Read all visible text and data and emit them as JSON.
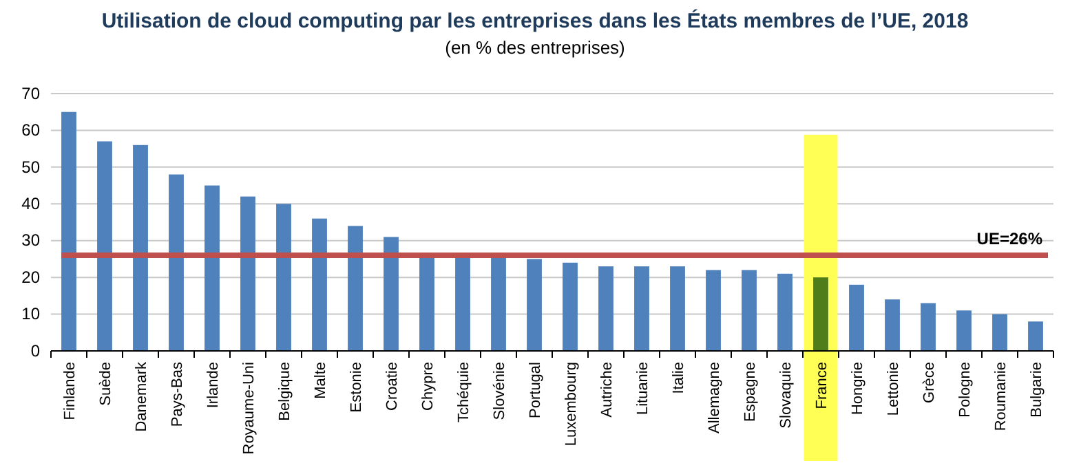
{
  "chart_data": {
    "type": "bar",
    "title": "Utilisation de cloud computing par les entreprises dans les États membres de l’UE, 2018",
    "subtitle": "(en % des entreprises)",
    "categories": [
      "Finlande",
      "Suède",
      "Danemark",
      "Pays-Bas",
      "Irlande",
      "Royaume-Uni",
      "Belgique",
      "Malte",
      "Estonie",
      "Croatie",
      "Chypre",
      "Tchéquie",
      "Slovénie",
      "Portugal",
      "Luxembourg",
      "Autriche",
      "Lituanie",
      "Italie",
      "Allemagne",
      "Espagne",
      "Slovaquie",
      "France",
      "Hongrie",
      "Lettonie",
      "Grèce",
      "Pologne",
      "Roumanie",
      "Bulgarie"
    ],
    "values": [
      65,
      57,
      56,
      48,
      45,
      42,
      40,
      36,
      34,
      31,
      26,
      26,
      26,
      25,
      24,
      23,
      23,
      23,
      22,
      22,
      21,
      20,
      18,
      14,
      13,
      11,
      10,
      8
    ],
    "colors": [
      "#4f81bd",
      "#4f81bd",
      "#4f81bd",
      "#4f81bd",
      "#4f81bd",
      "#4f81bd",
      "#4f81bd",
      "#4f81bd",
      "#4f81bd",
      "#4f81bd",
      "#4f81bd",
      "#4f81bd",
      "#4f81bd",
      "#4f81bd",
      "#4f81bd",
      "#4f81bd",
      "#4f81bd",
      "#4f81bd",
      "#4f81bd",
      "#4f81bd",
      "#4f81bd",
      "#4e7d1a",
      "#4f81bd",
      "#4f81bd",
      "#4f81bd",
      "#4f81bd",
      "#4f81bd",
      "#4f81bd"
    ],
    "ylim": [
      0,
      70
    ],
    "yticks": [
      0,
      10,
      20,
      30,
      40,
      50,
      60,
      70
    ],
    "grid": "y",
    "ref_lines": [
      {
        "axis": "y",
        "value": 26,
        "label": "UE=26%",
        "color": "#c0504d"
      }
    ],
    "bands": [
      {
        "axis": "x",
        "from": "France",
        "to": "France",
        "color": "#ffff55"
      }
    ]
  }
}
